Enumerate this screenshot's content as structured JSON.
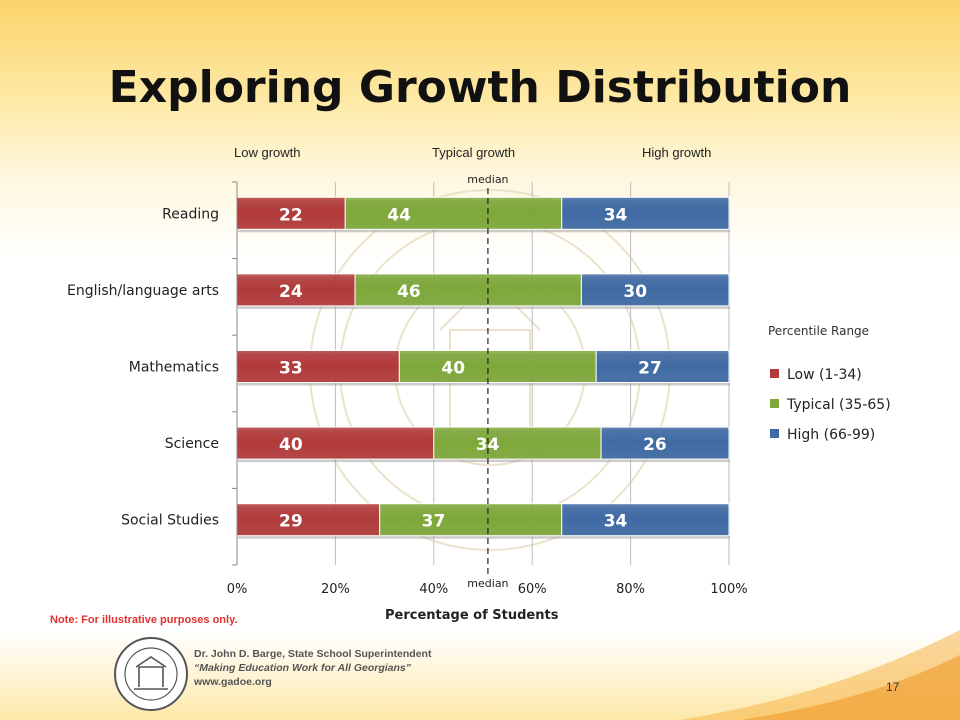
{
  "slide": {
    "title": "Exploring Growth Distribution",
    "growth_labels": [
      "Low growth",
      "Typical growth",
      "High growth"
    ],
    "note": "Note: For illustrative purposes only.",
    "page_number": "17",
    "footer_lines": [
      "Dr. John D. Barge, State School Superintendent",
      "“Making Education Work for All Georgians”",
      "www.gadoe.org"
    ]
  },
  "chart_data": {
    "type": "bar",
    "orientation": "horizontal",
    "stacked": true,
    "categories": [
      "Reading",
      "English/language arts",
      "Mathematics",
      "Science",
      "Social Studies"
    ],
    "series": [
      {
        "name": "Low (1-34)",
        "values": [
          22,
          24,
          33,
          40,
          29
        ],
        "color": "#b23a3a"
      },
      {
        "name": "Typical (35-65)",
        "values": [
          44,
          46,
          40,
          34,
          37
        ],
        "color": "#7ea83a"
      },
      {
        "name": "High (66-99)",
        "values": [
          34,
          30,
          27,
          26,
          34
        ],
        "color": "#3f6aa4"
      }
    ],
    "xlabel": "Percentage of Students",
    "ylabel": "",
    "xlim": [
      0,
      100
    ],
    "x_ticks": [
      "0%",
      "20%",
      "40%",
      "60%",
      "80%",
      "100%"
    ],
    "x_tick_values": [
      0,
      20,
      40,
      60,
      80,
      100
    ],
    "median_line": {
      "value": 51,
      "label": "median"
    },
    "legend": {
      "title": "Percentile Range",
      "position": "right"
    },
    "grid": "vertical"
  }
}
